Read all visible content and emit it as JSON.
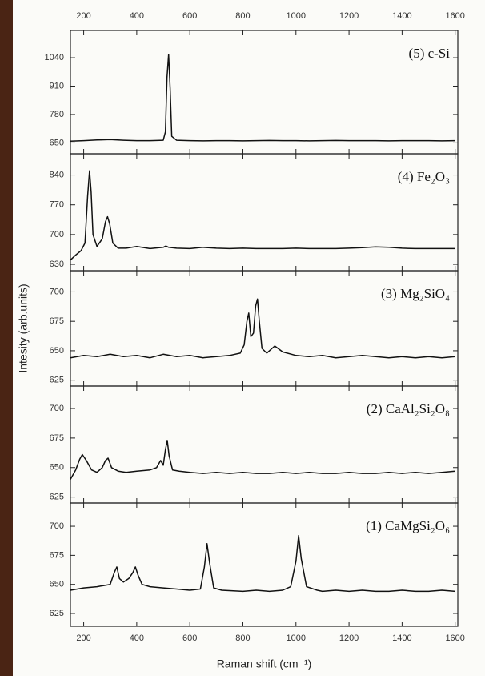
{
  "chart_data": [
    {
      "type": "line",
      "title": "(5) c-Si",
      "color": "#111111",
      "xlim": [
        150,
        1610
      ],
      "xticks": [
        200,
        400,
        600,
        800,
        1000,
        1200,
        1400,
        1600
      ],
      "ylim": [
        600,
        1165
      ],
      "yticks": [
        650,
        780,
        910,
        1040
      ],
      "x": [
        150,
        200,
        250,
        300,
        350,
        400,
        450,
        500,
        508,
        514,
        520,
        526,
        532,
        550,
        600,
        650,
        700,
        750,
        800,
        850,
        900,
        950,
        1000,
        1050,
        1100,
        1150,
        1200,
        1250,
        1300,
        1350,
        1400,
        1450,
        1500,
        1550,
        1600
      ],
      "values": [
        658,
        660,
        663,
        665,
        662,
        660,
        660,
        662,
        700,
        950,
        1055,
        900,
        680,
        662,
        660,
        659,
        660,
        660,
        659,
        660,
        661,
        660,
        660,
        659,
        660,
        661,
        660,
        660,
        660,
        659,
        660,
        660,
        660,
        659,
        660
      ]
    },
    {
      "type": "line",
      "title": "(4) Fe₂O₃",
      "color": "#111111",
      "xlim": [
        150,
        1610
      ],
      "xticks": [
        200,
        400,
        600,
        800,
        1000,
        1200,
        1400,
        1600
      ],
      "ylim": [
        615,
        890
      ],
      "yticks": [
        630,
        700,
        770,
        840
      ],
      "x": [
        150,
        170,
        190,
        205,
        215,
        222,
        228,
        235,
        250,
        270,
        282,
        290,
        298,
        310,
        330,
        360,
        400,
        450,
        500,
        510,
        520,
        550,
        600,
        650,
        700,
        750,
        800,
        850,
        900,
        950,
        1000,
        1050,
        1100,
        1150,
        1200,
        1250,
        1300,
        1350,
        1400,
        1450,
        1500,
        1550,
        1600
      ],
      "values": [
        640,
        652,
        662,
        680,
        790,
        850,
        800,
        700,
        672,
        690,
        730,
        742,
        725,
        680,
        668,
        668,
        672,
        667,
        670,
        673,
        670,
        668,
        667,
        670,
        668,
        667,
        668,
        667,
        667,
        667,
        668,
        667,
        667,
        667,
        668,
        669,
        671,
        670,
        668,
        667,
        667,
        667,
        667
      ]
    },
    {
      "type": "line",
      "title": "(3) Mg₂SiO₄",
      "color": "#111111",
      "ylabel": "Intesity (arb.units)",
      "xlim": [
        150,
        1610
      ],
      "xticks": [
        200,
        400,
        600,
        800,
        1000,
        1200,
        1400,
        1600
      ],
      "ylim": [
        620,
        718
      ],
      "yticks": [
        625,
        650,
        675,
        700
      ],
      "x": [
        150,
        200,
        250,
        300,
        350,
        400,
        450,
        500,
        550,
        600,
        650,
        700,
        750,
        790,
        805,
        815,
        822,
        830,
        840,
        848,
        855,
        862,
        872,
        890,
        920,
        950,
        1000,
        1050,
        1100,
        1150,
        1200,
        1250,
        1300,
        1350,
        1400,
        1450,
        1500,
        1550,
        1600
      ],
      "values": [
        644,
        646,
        645,
        647,
        645,
        646,
        644,
        647,
        645,
        646,
        644,
        645,
        646,
        648,
        655,
        675,
        682,
        662,
        665,
        688,
        694,
        675,
        652,
        648,
        654,
        649,
        646,
        645,
        646,
        644,
        645,
        646,
        645,
        644,
        645,
        644,
        645,
        644,
        645
      ]
    },
    {
      "type": "line",
      "title": "(2) CaAl₂Si₂O₈",
      "color": "#111111",
      "xlim": [
        150,
        1610
      ],
      "xticks": [
        200,
        400,
        600,
        800,
        1000,
        1200,
        1400,
        1600
      ],
      "ylim": [
        620,
        719
      ],
      "yticks": [
        625,
        650,
        675,
        700
      ],
      "x": [
        150,
        170,
        185,
        195,
        210,
        230,
        250,
        270,
        282,
        292,
        305,
        330,
        360,
        400,
        450,
        475,
        490,
        500,
        508,
        515,
        522,
        535,
        560,
        600,
        650,
        700,
        750,
        800,
        850,
        900,
        950,
        1000,
        1050,
        1100,
        1150,
        1200,
        1250,
        1300,
        1350,
        1400,
        1450,
        1500,
        1550,
        1600
      ],
      "values": [
        640,
        648,
        657,
        661,
        656,
        648,
        646,
        650,
        656,
        658,
        650,
        647,
        646,
        647,
        648,
        650,
        656,
        652,
        665,
        673,
        660,
        648,
        647,
        646,
        645,
        646,
        645,
        646,
        645,
        645,
        646,
        645,
        646,
        645,
        645,
        646,
        645,
        645,
        646,
        645,
        646,
        645,
        646,
        647
      ]
    },
    {
      "type": "line",
      "title": "(1) CaMgSi₂O₆",
      "color": "#111111",
      "xlabel": "Raman shift (cm⁻¹)",
      "xlim": [
        150,
        1610
      ],
      "xticks": [
        200,
        400,
        600,
        800,
        1000,
        1200,
        1400,
        1600
      ],
      "ylim": [
        614,
        720
      ],
      "yticks": [
        625,
        650,
        675,
        700
      ],
      "x": [
        150,
        200,
        250,
        300,
        315,
        325,
        335,
        350,
        370,
        385,
        395,
        405,
        420,
        450,
        500,
        550,
        600,
        640,
        655,
        665,
        675,
        690,
        720,
        800,
        850,
        900,
        950,
        980,
        1000,
        1010,
        1020,
        1040,
        1080,
        1100,
        1150,
        1200,
        1250,
        1300,
        1350,
        1400,
        1450,
        1500,
        1550,
        1600
      ],
      "values": [
        645,
        647,
        648,
        650,
        660,
        665,
        655,
        652,
        655,
        660,
        665,
        658,
        650,
        648,
        647,
        646,
        645,
        646,
        665,
        685,
        668,
        647,
        645,
        644,
        645,
        644,
        645,
        648,
        670,
        692,
        672,
        648,
        645,
        644,
        645,
        644,
        645,
        644,
        644,
        645,
        644,
        644,
        645,
        644
      ]
    }
  ]
}
